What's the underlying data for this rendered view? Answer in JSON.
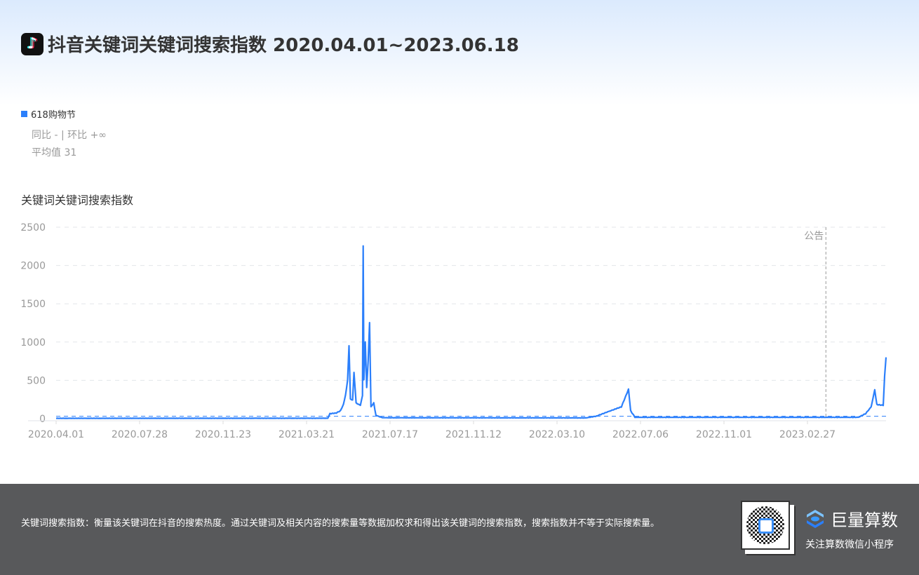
{
  "header": {
    "title": "抖音关键词关键词搜索指数 2020.04.01~2023.06.18",
    "logo_icon": "douyin-logo-icon"
  },
  "legend": {
    "name": "618购物节",
    "color": "#2b7ffb",
    "compare": "同比 - | 环比 +∞",
    "average": "平均值 31"
  },
  "chart_data": {
    "type": "line",
    "title": "关键词关键词搜索指数",
    "ylim": [
      0,
      2500
    ],
    "yticks": [
      "0",
      "500",
      "1000",
      "1500",
      "2000",
      "2500"
    ],
    "xlim": [
      "2020-04-01",
      "2023-06-18"
    ],
    "xticks": [
      "2020.04.01",
      "2020.07.28",
      "2020.11.23",
      "2021.03.21",
      "2021.07.17",
      "2021.11.12",
      "2022.03.10",
      "2022.07.06",
      "2022.11.01",
      "2023.02.27"
    ],
    "grid": true,
    "average": 31,
    "annotation": {
      "label": "公告",
      "date": "2023-03-25"
    },
    "series": [
      {
        "name": "618购物节",
        "color": "#2b7ffb",
        "points": [
          [
            "2020-04-01",
            3
          ],
          [
            "2021-04-20",
            4
          ],
          [
            "2021-04-23",
            60
          ],
          [
            "2021-05-02",
            70
          ],
          [
            "2021-05-08",
            100
          ],
          [
            "2021-05-12",
            180
          ],
          [
            "2021-05-15",
            300
          ],
          [
            "2021-05-18",
            500
          ],
          [
            "2021-05-20",
            950
          ],
          [
            "2021-05-22",
            250
          ],
          [
            "2021-05-25",
            240
          ],
          [
            "2021-05-27",
            600
          ],
          [
            "2021-05-30",
            200
          ],
          [
            "2021-06-05",
            170
          ],
          [
            "2021-06-08",
            300
          ],
          [
            "2021-06-09",
            2250
          ],
          [
            "2021-06-10",
            500
          ],
          [
            "2021-06-12",
            1000
          ],
          [
            "2021-06-14",
            400
          ],
          [
            "2021-06-16",
            750
          ],
          [
            "2021-06-18",
            1250
          ],
          [
            "2021-06-20",
            150
          ],
          [
            "2021-06-24",
            200
          ],
          [
            "2021-06-27",
            40
          ],
          [
            "2021-07-06",
            10
          ],
          [
            "2022-04-20",
            8
          ],
          [
            "2022-05-05",
            30
          ],
          [
            "2022-05-25",
            100
          ],
          [
            "2022-06-09",
            150
          ],
          [
            "2022-06-19",
            380
          ],
          [
            "2022-06-22",
            100
          ],
          [
            "2022-06-28",
            15
          ],
          [
            "2023-05-10",
            15
          ],
          [
            "2023-05-20",
            60
          ],
          [
            "2023-05-28",
            150
          ],
          [
            "2023-06-02",
            370
          ],
          [
            "2023-06-05",
            180
          ],
          [
            "2023-06-14",
            170
          ],
          [
            "2023-06-16",
            550
          ],
          [
            "2023-06-18",
            800
          ]
        ]
      }
    ]
  },
  "footer": {
    "description": "关键词搜索指数：衡量该关键词在抖音的搜索热度。通过关键词及相关内容的搜索量等数据加权求和得出该关键词的搜索指数，搜索指数并不等于实际搜索量。",
    "brand": "巨量算数",
    "brand_sub": "关注算数微信小程序"
  }
}
